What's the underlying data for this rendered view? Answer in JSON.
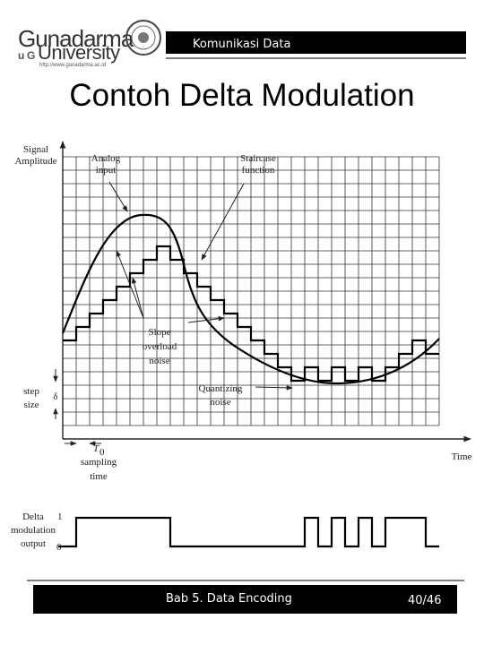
{
  "header": {
    "logo_name": "Gunadarma",
    "logo_university": "University",
    "logo_url": "http://www.gunadarma.ac.id",
    "course": "Komunikasi Data"
  },
  "title": "Contoh Delta Modulation",
  "diagram": {
    "signal_amplitude": [
      "Signal",
      "Amplitude"
    ],
    "analog_input": [
      "Analog",
      "input"
    ],
    "staircase": [
      "Staircase",
      "function"
    ],
    "slope_overload": [
      "Slope",
      "overload",
      "noise"
    ],
    "step_size": [
      "step",
      "size"
    ],
    "delta": "δ",
    "quantizing": [
      "Quantizing",
      "noise"
    ],
    "t_label": "T",
    "t_sub": "0",
    "sampling_time": [
      "sampling",
      "time"
    ],
    "time": "Time",
    "output_label": [
      "Delta",
      "modulation",
      "output"
    ],
    "high": "1",
    "low": "0"
  },
  "footer": {
    "chapter": "Bab 5. Data Encoding",
    "page": "40/46"
  }
}
